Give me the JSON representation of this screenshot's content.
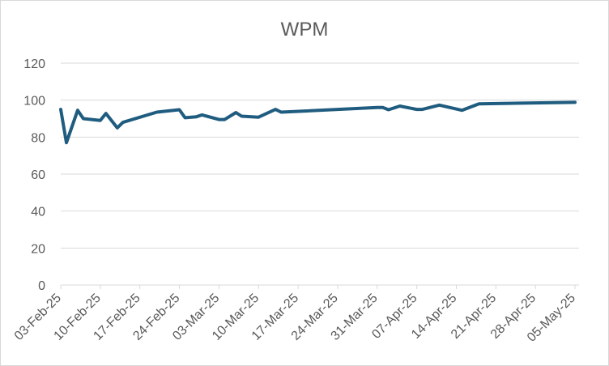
{
  "chart_data": {
    "type": "line",
    "title": "WPM",
    "xlabel": "",
    "ylabel": "",
    "ylim": [
      0,
      120
    ],
    "yticks": [
      0,
      20,
      40,
      60,
      80,
      100,
      120
    ],
    "x_range": [
      "2025-02-03",
      "2025-05-05"
    ],
    "x_tick_labels": [
      "03-Feb-25",
      "10-Feb-25",
      "17-Feb-25",
      "24-Feb-25",
      "03-Mar-25",
      "10-Mar-25",
      "17-Mar-25",
      "24-Mar-25",
      "31-Mar-25",
      "07-Apr-25",
      "14-Apr-25",
      "21-Apr-25",
      "28-Apr-25",
      "05-May-25"
    ],
    "grid": true,
    "legend": "none",
    "series": [
      {
        "color": "#1f5c7f",
        "points": [
          {
            "x": "2025-02-03",
            "y": 95
          },
          {
            "x": "2025-02-04",
            "y": 77
          },
          {
            "x": "2025-02-06",
            "y": 94.5
          },
          {
            "x": "2025-02-07",
            "y": 90
          },
          {
            "x": "2025-02-10",
            "y": 89
          },
          {
            "x": "2025-02-11",
            "y": 92.8
          },
          {
            "x": "2025-02-13",
            "y": 85
          },
          {
            "x": "2025-02-14",
            "y": 88
          },
          {
            "x": "2025-02-20",
            "y": 93.5
          },
          {
            "x": "2025-02-24",
            "y": 94.8
          },
          {
            "x": "2025-02-25",
            "y": 90.5
          },
          {
            "x": "2025-02-27",
            "y": 91
          },
          {
            "x": "2025-02-28",
            "y": 92
          },
          {
            "x": "2025-03-03",
            "y": 89.5
          },
          {
            "x": "2025-03-04",
            "y": 89.5
          },
          {
            "x": "2025-03-06",
            "y": 93.3
          },
          {
            "x": "2025-03-07",
            "y": 91.3
          },
          {
            "x": "2025-03-10",
            "y": 90.8
          },
          {
            "x": "2025-03-13",
            "y": 95
          },
          {
            "x": "2025-03-14",
            "y": 93.5
          },
          {
            "x": "2025-03-31",
            "y": 96
          },
          {
            "x": "2025-04-01",
            "y": 96
          },
          {
            "x": "2025-04-02",
            "y": 94.8
          },
          {
            "x": "2025-04-04",
            "y": 96.8
          },
          {
            "x": "2025-04-07",
            "y": 95
          },
          {
            "x": "2025-04-08",
            "y": 95
          },
          {
            "x": "2025-04-11",
            "y": 97.3
          },
          {
            "x": "2025-04-15",
            "y": 94.5
          },
          {
            "x": "2025-04-18",
            "y": 98
          },
          {
            "x": "2025-05-05",
            "y": 98.8
          }
        ]
      }
    ]
  }
}
